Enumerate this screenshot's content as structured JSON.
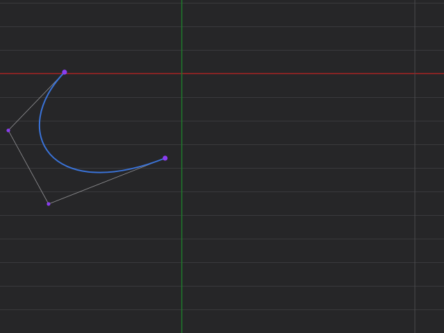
{
  "editor": {
    "colors": {
      "background": "#262628",
      "grid": "#3a3a3d",
      "x_axis": "#a02020",
      "y_axis": "#1e7a2a",
      "curve": "#3a73d9",
      "handle_line": "#8a8a8d",
      "point": "#8a3df0"
    },
    "tool": "bezier-curve-editor",
    "icons": {
      "anchor": "anchor-point-icon",
      "control": "control-point-icon"
    }
  }
}
